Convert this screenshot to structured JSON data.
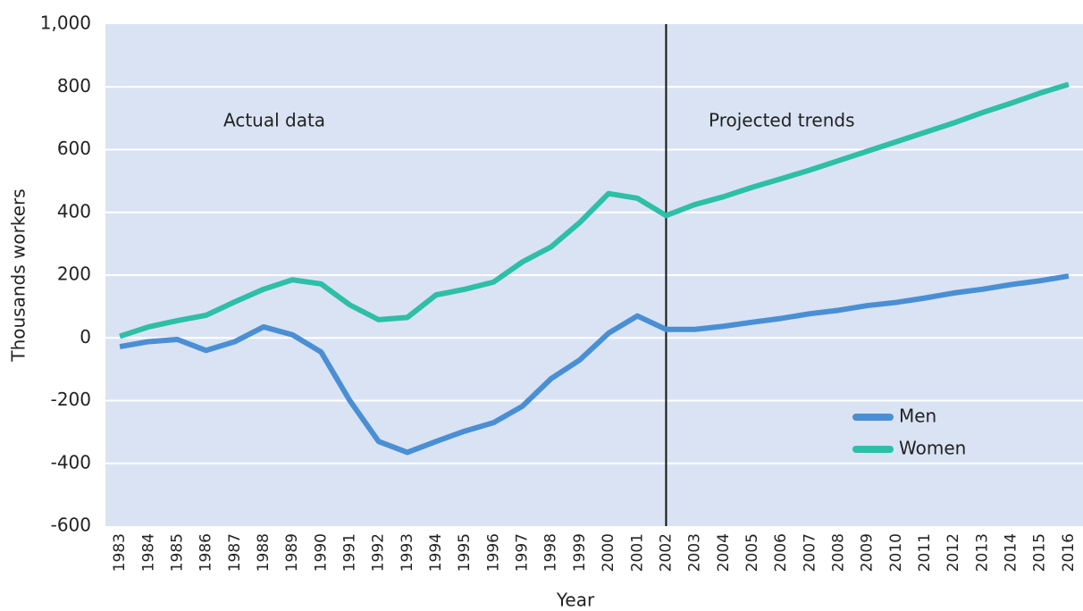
{
  "chart_data": {
    "type": "line",
    "y_label": "Thousands workers",
    "x_label": "Year",
    "categories": [
      "1983",
      "1984",
      "1985",
      "1986",
      "1987",
      "1988",
      "1989",
      "1990",
      "1991",
      "1992",
      "1993",
      "1994",
      "1995",
      "1996",
      "1997",
      "1998",
      "1999",
      "2000",
      "2001",
      "2002",
      "2003",
      "2004",
      "2005",
      "2006",
      "2007",
      "2008",
      "2009",
      "2010",
      "2011",
      "2012",
      "2013",
      "2014",
      "2015",
      "2016"
    ],
    "series": [
      {
        "name": "Men",
        "color": "#4a8fd4",
        "values": [
          -28,
          -12,
          -5,
          -40,
          -12,
          35,
          10,
          -45,
          -200,
          -330,
          -365,
          -330,
          -297,
          -270,
          -218,
          -130,
          -70,
          15,
          70,
          27,
          27,
          37,
          50,
          62,
          77,
          88,
          103,
          113,
          127,
          143,
          155,
          170,
          182,
          197
        ]
      },
      {
        "name": "Women",
        "color": "#2dbfa7",
        "values": [
          5,
          35,
          55,
          72,
          115,
          155,
          185,
          172,
          105,
          58,
          65,
          137,
          155,
          178,
          242,
          290,
          368,
          460,
          445,
          390,
          425,
          450,
          480,
          507,
          535,
          565,
          595,
          625,
          655,
          685,
          718,
          748,
          780,
          808
        ]
      }
    ],
    "ylim": [
      -600,
      1000
    ],
    "yticks": [
      -600,
      -400,
      -200,
      0,
      200,
      400,
      600,
      800,
      {
        "value": 1000,
        "label": "1,000"
      }
    ],
    "grid": true,
    "projection_start": "2002",
    "annotations": [
      "Actual data",
      "Projected trends"
    ],
    "legend": "lower-right"
  }
}
